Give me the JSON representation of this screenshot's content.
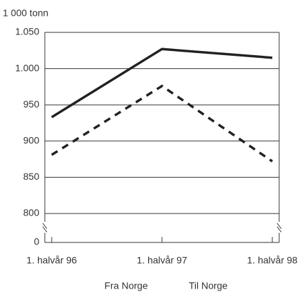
{
  "chart_data": {
    "type": "line",
    "y_label": "1 000 tonn",
    "categories": [
      "1. halvår 96",
      "1. halvår 97",
      "1. halvår 98"
    ],
    "series": [
      {
        "name": "Fra Norge",
        "color": "#222222",
        "dash": "solid",
        "values": [
          933,
          1027,
          1015
        ]
      },
      {
        "name": "Til Norge",
        "color": "#222222",
        "dash": "dashed",
        "values": [
          881,
          976,
          872
        ]
      }
    ],
    "ylim": [
      800,
      1050
    ],
    "yticks": [
      0,
      800,
      850,
      900,
      950,
      {
        "value": 1000,
        "label": "1.000"
      },
      {
        "value": 1050,
        "label": "1.050"
      }
    ],
    "axis_break": true,
    "grid": true,
    "legend": "bottom"
  }
}
